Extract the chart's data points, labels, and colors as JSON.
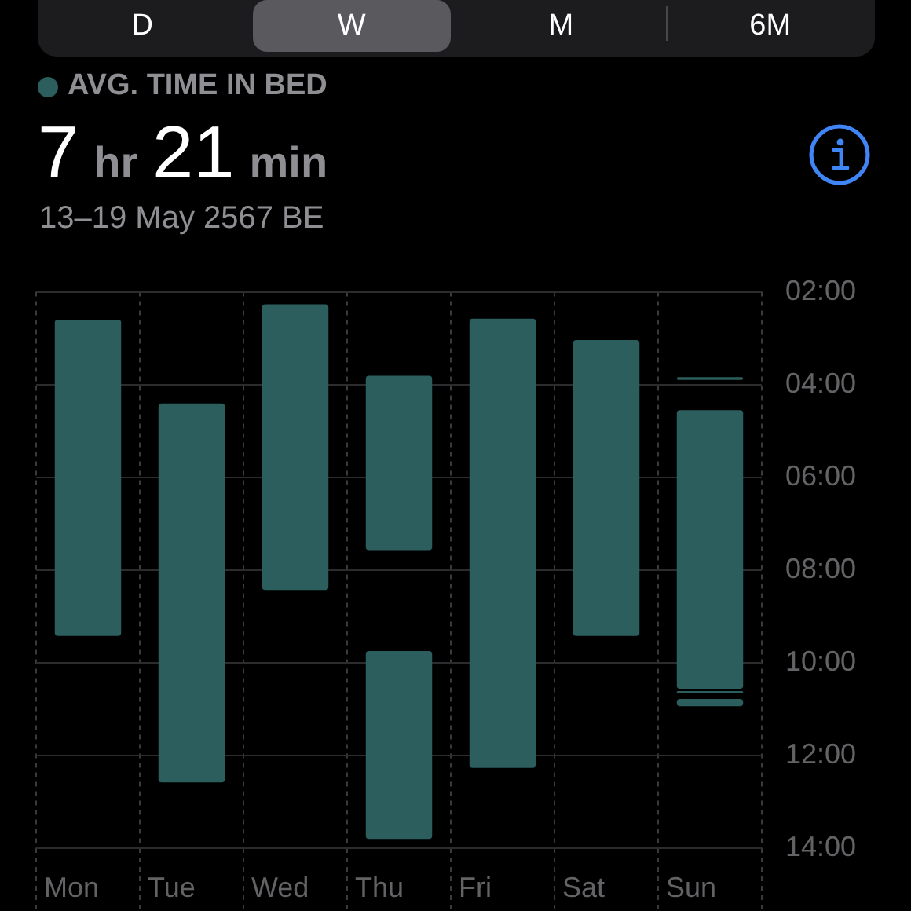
{
  "chart_data": {
    "type": "bar",
    "title": "AVG. TIME IN BED",
    "subtitle": "13–19 May 2567 BE",
    "annotations": [
      "D",
      "W",
      "M",
      "6M",
      "7 hr 21 min"
    ],
    "categories": [
      "Mon",
      "Tue",
      "Wed",
      "Thu",
      "Fri",
      "Sat",
      "Sun"
    ],
    "series": [
      {
        "color": "#2b5e5d",
        "base": [
          2.6,
          4.41,
          2.27,
          3.81,
          2.58,
          3.04,
          4.55
        ],
        "values": [
          6.82,
          8.17,
          6.16,
          3.76,
          9.69,
          6.38,
          6.01
        ]
      },
      {
        "color": "#2b5e5d",
        "base": [
          null,
          null,
          null,
          9.75,
          null,
          null,
          3.84
        ],
        "values": [
          null,
          null,
          null,
          4.05,
          null,
          null,
          0.06
        ]
      },
      {
        "color": "#2b5e5d",
        "base": [
          null,
          null,
          null,
          null,
          null,
          null,
          10.61
        ],
        "values": [
          null,
          null,
          null,
          null,
          null,
          null,
          0.05
        ]
      },
      {
        "color": "#2b5e5d",
        "base": [
          null,
          null,
          null,
          null,
          null,
          null,
          10.78
        ],
        "values": [
          null,
          null,
          null,
          null,
          null,
          null,
          0.16
        ]
      }
    ],
    "ylim": [
      14,
      2
    ],
    "yticks": [
      {
        "value": 2,
        "label": "02:00"
      },
      {
        "value": 4,
        "label": "04:00"
      },
      {
        "value": 6,
        "label": "06:00"
      },
      {
        "value": 8,
        "label": "08:00"
      },
      {
        "value": 10,
        "label": "10:00"
      },
      {
        "value": 12,
        "label": "12:00"
      },
      {
        "value": 14,
        "label": "14:00"
      }
    ],
    "grid": true
  }
}
